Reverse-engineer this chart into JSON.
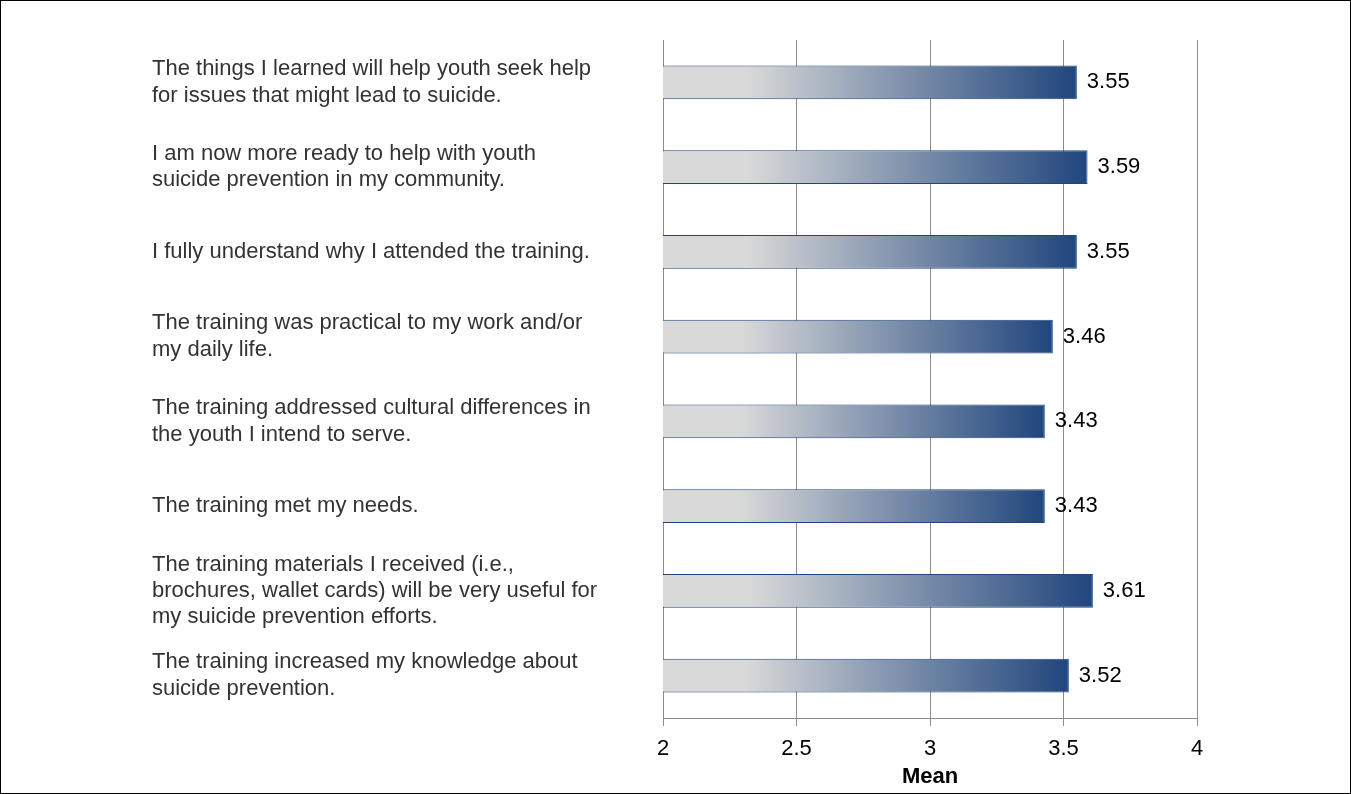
{
  "chart_data": {
    "type": "bar",
    "orientation": "horizontal",
    "xlabel": "Mean",
    "categories": [
      "The things I learned will help youth seek help for issues that might lead to suicide.",
      "I am now more ready to help with youth suicide prevention in my community.",
      "I fully understand why I attended the training.",
      "The training was practical to my work and/or my daily life.",
      "The training addressed cultural differences in the youth I intend to serve.",
      "The training met my needs.",
      "The training materials I received (i.e., brochures, wallet cards) will be very useful for my suicide prevention efforts.",
      "The training increased my knowledge about suicide prevention."
    ],
    "values": [
      3.55,
      3.59,
      3.55,
      3.46,
      3.43,
      3.43,
      3.61,
      3.52
    ],
    "color": "#20467d",
    "xlim": [
      2,
      4
    ],
    "xticks": [
      2,
      2.5,
      3,
      3.5,
      4
    ],
    "grid": "x",
    "data_labels": true
  }
}
